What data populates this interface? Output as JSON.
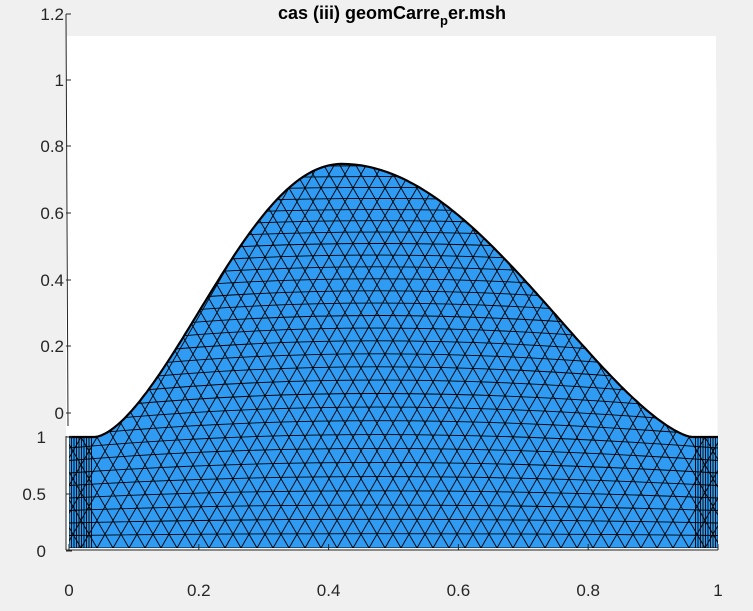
{
  "chart_data": {
    "type": "surface",
    "title": {
      "main": "cas (iii) geomCarre",
      "subscript": "p",
      "tail": "er.msh"
    },
    "xlabel": "",
    "ylabel": "",
    "zlabel": "",
    "x_ticks": [
      "0",
      "0.2",
      "0.4",
      "0.6",
      "0.8",
      "1"
    ],
    "y_ticks": [
      "0",
      "0.5",
      "1"
    ],
    "z_ticks": [
      "0",
      "0.2",
      "0.4",
      "0.6",
      "0.8",
      "1",
      "1.2"
    ],
    "x_range": [
      0,
      1
    ],
    "y_range": [
      0,
      1
    ],
    "z_range": [
      0,
      1.2
    ],
    "peak": {
      "x": 0.42,
      "z": 0.82
    },
    "plateau_edges": {
      "left_x": 0.04,
      "right_x": 0.96,
      "z": 0.0
    },
    "face_color": "#2f9bf3",
    "edge_color": "#000000",
    "mesh": "triangular",
    "grid": false
  }
}
